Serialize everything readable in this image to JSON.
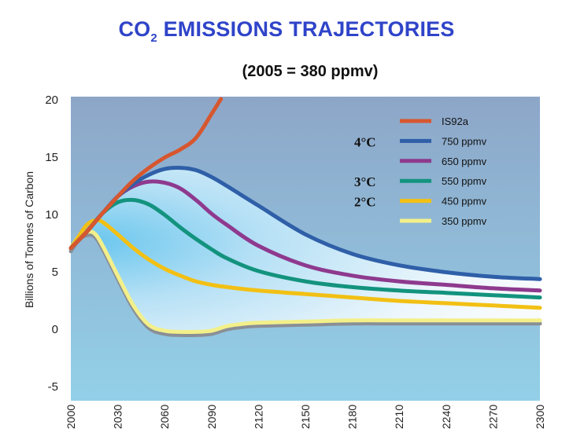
{
  "chart_data": {
    "type": "line",
    "title_main": "CO",
    "title_sub": "2",
    "title_rest": " EMISSIONS TRAJECTORIES",
    "subtitle": "(2005 = 380 ppmv)",
    "ylabel": "Billions of Tonnes of Carbon",
    "xlabel": "",
    "xlim": [
      2000,
      2300
    ],
    "ylim": [
      -5,
      20
    ],
    "xticks": [
      "2000",
      "2030",
      "2060",
      "2090",
      "2120",
      "2150",
      "2180",
      "2210",
      "2240",
      "2270",
      "2300"
    ],
    "yticks": [
      "20",
      "15",
      "10",
      "5",
      "0",
      "-5"
    ],
    "grid": false,
    "legend_position": "top-right",
    "series": [
      {
        "name": "IS92a",
        "color": "#d6572f",
        "x": [
          2000,
          2010,
          2020,
          2030,
          2040,
          2050,
          2060,
          2070,
          2080,
          2090,
          2096
        ],
        "y": [
          7.0,
          8.4,
          10.0,
          11.5,
          12.9,
          14.0,
          14.9,
          15.6,
          16.6,
          18.7,
          20.0
        ]
      },
      {
        "name": "750 ppmv",
        "color": "#2f5fa8",
        "x": [
          2000,
          2010,
          2020,
          2030,
          2040,
          2050,
          2060,
          2070,
          2080,
          2090,
          2100,
          2120,
          2150,
          2180,
          2210,
          2240,
          2270,
          2300
        ],
        "y": [
          7.0,
          8.4,
          10.0,
          11.5,
          12.6,
          13.4,
          13.9,
          14.0,
          13.8,
          13.2,
          12.4,
          10.7,
          8.2,
          6.5,
          5.5,
          4.9,
          4.5,
          4.3
        ]
      },
      {
        "name": "650 ppmv",
        "color": "#8e3a8e",
        "x": [
          2000,
          2010,
          2020,
          2030,
          2040,
          2050,
          2060,
          2070,
          2080,
          2090,
          2100,
          2120,
          2150,
          2180,
          2210,
          2240,
          2270,
          2300
        ],
        "y": [
          7.0,
          8.4,
          10.0,
          11.5,
          12.4,
          12.8,
          12.7,
          12.2,
          11.2,
          10.0,
          9.0,
          7.2,
          5.5,
          4.6,
          4.1,
          3.8,
          3.5,
          3.3
        ]
      },
      {
        "name": "550 ppmv",
        "color": "#13937e",
        "x": [
          2000,
          2010,
          2020,
          2030,
          2040,
          2050,
          2060,
          2070,
          2080,
          2090,
          2100,
          2120,
          2150,
          2180,
          2210,
          2240,
          2270,
          2300
        ],
        "y": [
          7.0,
          8.4,
          10.0,
          11.0,
          11.2,
          10.8,
          9.9,
          8.8,
          7.8,
          6.9,
          6.1,
          5.0,
          4.1,
          3.6,
          3.3,
          3.1,
          2.9,
          2.7
        ]
      },
      {
        "name": "450 ppmv",
        "color": "#f2c014",
        "x": [
          2000,
          2005,
          2010,
          2015,
          2020,
          2030,
          2040,
          2050,
          2060,
          2070,
          2080,
          2090,
          2100,
          2120,
          2150,
          2180,
          2210,
          2240,
          2270,
          2300
        ],
        "y": [
          7.0,
          8.0,
          9.0,
          9.4,
          9.3,
          8.2,
          7.0,
          6.0,
          5.2,
          4.6,
          4.1,
          3.8,
          3.6,
          3.3,
          3.0,
          2.7,
          2.4,
          2.2,
          2.0,
          1.8
        ]
      },
      {
        "name": "350 ppmv",
        "color": "#f3f08a",
        "x": [
          2000,
          2005,
          2010,
          2015,
          2020,
          2030,
          2040,
          2050,
          2060,
          2070,
          2080,
          2090,
          2100,
          2110,
          2120,
          2150,
          2180,
          2210,
          2240,
          2270,
          2300
        ],
        "y": [
          7.0,
          8.0,
          8.4,
          8.3,
          7.3,
          4.6,
          2.0,
          0.3,
          -0.2,
          -0.3,
          -0.3,
          -0.2,
          0.2,
          0.4,
          0.5,
          0.6,
          0.7,
          0.7,
          0.7,
          0.7,
          0.7
        ]
      }
    ],
    "temperature_labels": [
      {
        "text": "4°C",
        "series": "750 ppmv"
      },
      {
        "text": "3°C",
        "series": "550 ppmv"
      },
      {
        "text": "2°C",
        "series": "450 ppmv"
      }
    ]
  },
  "colors": {
    "title": "#2f44c9",
    "plot_top": "#8fa9cb",
    "plot_bottom": "#8fcde6",
    "fan_inner": "#7fcff0",
    "fan_outer": "#f4f9fd"
  }
}
